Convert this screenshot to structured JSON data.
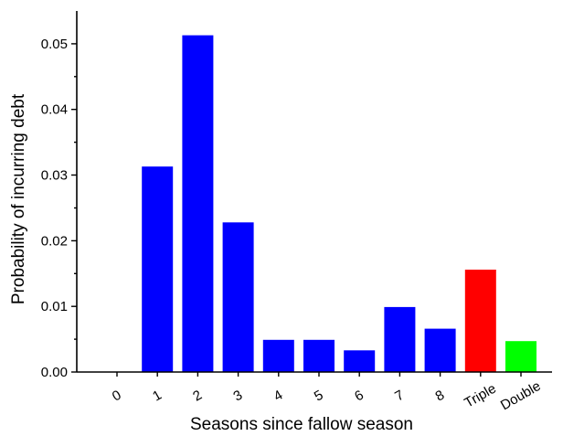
{
  "chart_data": {
    "type": "bar",
    "categories": [
      "0",
      "1",
      "2",
      "3",
      "4",
      "5",
      "6",
      "7",
      "8",
      "Triple",
      "Double"
    ],
    "values": [
      0,
      0.0313,
      0.0513,
      0.0228,
      0.0049,
      0.0049,
      0.0033,
      0.0099,
      0.0066,
      0.0156,
      0.0047
    ],
    "bar_colors": [
      "#0000ff",
      "#0000ff",
      "#0000ff",
      "#0000ff",
      "#0000ff",
      "#0000ff",
      "#0000ff",
      "#0000ff",
      "#0000ff",
      "#ff0000",
      "#00ff00"
    ],
    "xlabel": "Seasons since fallow season",
    "ylabel": "Probability of incurring debt",
    "ylim": [
      0,
      0.055
    ],
    "yticks": [
      "0.00",
      "0.01",
      "0.02",
      "0.03",
      "0.04",
      "0.05"
    ],
    "ytick_values": [
      0,
      0.01,
      0.02,
      0.03,
      0.04,
      0.05
    ],
    "grid": false,
    "legend": false
  }
}
